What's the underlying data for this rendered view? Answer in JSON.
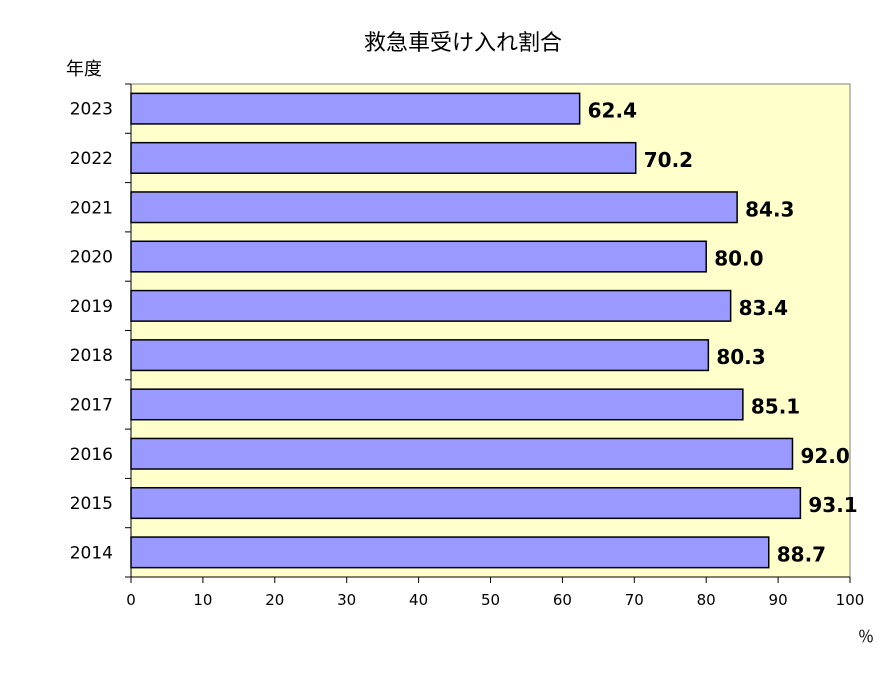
{
  "chart_data": {
    "type": "bar",
    "orientation": "horizontal",
    "title": "救急車受け入れ割合",
    "ylabel": "年度",
    "xlabel": "％",
    "categories": [
      "2023",
      "2022",
      "2021",
      "2020",
      "2019",
      "2018",
      "2017",
      "2016",
      "2015",
      "2014"
    ],
    "values": [
      62.4,
      70.2,
      84.3,
      80.0,
      83.4,
      80.3,
      85.1,
      92.0,
      93.1,
      88.7
    ],
    "value_labels": [
      "62.4",
      "70.2",
      "84.3",
      "80.0",
      "83.4",
      "80.3",
      "85.1",
      "92.0",
      "93.1",
      "88.7"
    ],
    "xlim": [
      0,
      100
    ],
    "xticks": [
      "0",
      "10",
      "20",
      "30",
      "40",
      "50",
      "60",
      "70",
      "80",
      "90",
      "100"
    ],
    "colors": {
      "bar": "#9999ff",
      "plot_background": "#ffffcc",
      "outline": "#000000"
    },
    "grid": false
  }
}
